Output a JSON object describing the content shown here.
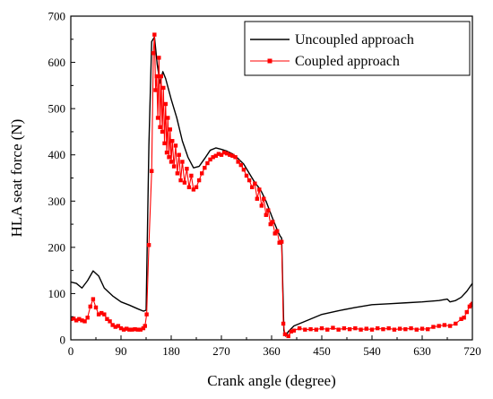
{
  "chart_data": {
    "type": "line",
    "title": "",
    "xlabel": "Crank angle (degree)",
    "ylabel": "HLA seat force (N)",
    "xlim": [
      0,
      720
    ],
    "ylim": [
      0,
      700
    ],
    "x_ticks": [
      0,
      90,
      180,
      270,
      360,
      450,
      540,
      630,
      720
    ],
    "y_ticks": [
      0,
      100,
      200,
      300,
      400,
      500,
      600,
      700
    ],
    "x_tick_labels": [
      "0",
      "90",
      "180",
      "270",
      "360",
      "450",
      "540",
      "630",
      "720"
    ],
    "y_tick_labels": [
      "0",
      "100",
      "200",
      "300",
      "400",
      "500",
      "600",
      "700"
    ],
    "grid": false,
    "legend": {
      "placement": "top-right"
    },
    "series": [
      {
        "name": "Uncoupled approach",
        "color": "#000000",
        "marker": "none",
        "points": [
          [
            0,
            125
          ],
          [
            10,
            122
          ],
          [
            20,
            112
          ],
          [
            30,
            128
          ],
          [
            40,
            149
          ],
          [
            50,
            138
          ],
          [
            60,
            112
          ],
          [
            75,
            95
          ],
          [
            90,
            82
          ],
          [
            105,
            75
          ],
          [
            120,
            67
          ],
          [
            130,
            62
          ],
          [
            135,
            64
          ],
          [
            140,
            420
          ],
          [
            145,
            645
          ],
          [
            150,
            655
          ],
          [
            155,
            595
          ],
          [
            160,
            555
          ],
          [
            165,
            580
          ],
          [
            170,
            565
          ],
          [
            180,
            520
          ],
          [
            190,
            480
          ],
          [
            200,
            430
          ],
          [
            210,
            395
          ],
          [
            220,
            372
          ],
          [
            230,
            375
          ],
          [
            240,
            392
          ],
          [
            250,
            410
          ],
          [
            260,
            415
          ],
          [
            270,
            412
          ],
          [
            280,
            408
          ],
          [
            290,
            402
          ],
          [
            300,
            392
          ],
          [
            310,
            380
          ],
          [
            320,
            360
          ],
          [
            330,
            340
          ],
          [
            340,
            325
          ],
          [
            350,
            300
          ],
          [
            360,
            268
          ],
          [
            370,
            238
          ],
          [
            375,
            225
          ],
          [
            378,
            220
          ],
          [
            380,
            120
          ],
          [
            382,
            20
          ],
          [
            385,
            8
          ],
          [
            390,
            18
          ],
          [
            400,
            30
          ],
          [
            420,
            40
          ],
          [
            450,
            55
          ],
          [
            480,
            63
          ],
          [
            510,
            70
          ],
          [
            540,
            76
          ],
          [
            570,
            78
          ],
          [
            600,
            80
          ],
          [
            630,
            82
          ],
          [
            660,
            85
          ],
          [
            675,
            88
          ],
          [
            680,
            82
          ],
          [
            690,
            85
          ],
          [
            700,
            92
          ],
          [
            710,
            105
          ],
          [
            720,
            122
          ]
        ]
      },
      {
        "name": "Coupled approach",
        "color": "#ff0000",
        "marker": "square",
        "points": [
          [
            0,
            45
          ],
          [
            5,
            46
          ],
          [
            10,
            42
          ],
          [
            15,
            45
          ],
          [
            20,
            42
          ],
          [
            25,
            40
          ],
          [
            30,
            48
          ],
          [
            35,
            72
          ],
          [
            40,
            88
          ],
          [
            45,
            70
          ],
          [
            50,
            55
          ],
          [
            55,
            58
          ],
          [
            60,
            55
          ],
          [
            65,
            45
          ],
          [
            70,
            40
          ],
          [
            75,
            32
          ],
          [
            80,
            28
          ],
          [
            85,
            30
          ],
          [
            90,
            25
          ],
          [
            95,
            22
          ],
          [
            100,
            24
          ],
          [
            105,
            22
          ],
          [
            110,
            22
          ],
          [
            115,
            23
          ],
          [
            120,
            22
          ],
          [
            125,
            22
          ],
          [
            130,
            25
          ],
          [
            133,
            30
          ],
          [
            136,
            55
          ],
          [
            140,
            205
          ],
          [
            145,
            365
          ],
          [
            148,
            620
          ],
          [
            150,
            660
          ],
          [
            152,
            540
          ],
          [
            154,
            570
          ],
          [
            156,
            480
          ],
          [
            158,
            610
          ],
          [
            160,
            460
          ],
          [
            162,
            570
          ],
          [
            164,
            450
          ],
          [
            166,
            545
          ],
          [
            168,
            425
          ],
          [
            170,
            510
          ],
          [
            172,
            405
          ],
          [
            174,
            480
          ],
          [
            176,
            395
          ],
          [
            178,
            455
          ],
          [
            180,
            385
          ],
          [
            182,
            430
          ],
          [
            185,
            375
          ],
          [
            188,
            420
          ],
          [
            191,
            360
          ],
          [
            194,
            400
          ],
          [
            197,
            345
          ],
          [
            200,
            385
          ],
          [
            204,
            340
          ],
          [
            208,
            370
          ],
          [
            212,
            330
          ],
          [
            216,
            355
          ],
          [
            220,
            325
          ],
          [
            225,
            330
          ],
          [
            230,
            345
          ],
          [
            235,
            360
          ],
          [
            240,
            372
          ],
          [
            245,
            382
          ],
          [
            250,
            390
          ],
          [
            255,
            395
          ],
          [
            260,
            398
          ],
          [
            265,
            402
          ],
          [
            270,
            400
          ],
          [
            275,
            405
          ],
          [
            280,
            403
          ],
          [
            285,
            400
          ],
          [
            290,
            398
          ],
          [
            295,
            395
          ],
          [
            300,
            385
          ],
          [
            305,
            378
          ],
          [
            310,
            368
          ],
          [
            315,
            355
          ],
          [
            320,
            345
          ],
          [
            325,
            330
          ],
          [
            330,
            338
          ],
          [
            334,
            305
          ],
          [
            338,
            325
          ],
          [
            342,
            290
          ],
          [
            346,
            305
          ],
          [
            350,
            270
          ],
          [
            354,
            280
          ],
          [
            358,
            250
          ],
          [
            362,
            255
          ],
          [
            366,
            230
          ],
          [
            370,
            235
          ],
          [
            374,
            210
          ],
          [
            378,
            212
          ],
          [
            381,
            35
          ],
          [
            384,
            12
          ],
          [
            390,
            8
          ],
          [
            395,
            18
          ],
          [
            400,
            20
          ],
          [
            410,
            25
          ],
          [
            420,
            22
          ],
          [
            430,
            23
          ],
          [
            440,
            22
          ],
          [
            450,
            25
          ],
          [
            460,
            22
          ],
          [
            470,
            26
          ],
          [
            480,
            22
          ],
          [
            490,
            25
          ],
          [
            500,
            23
          ],
          [
            510,
            25
          ],
          [
            520,
            22
          ],
          [
            530,
            24
          ],
          [
            540,
            22
          ],
          [
            550,
            25
          ],
          [
            560,
            23
          ],
          [
            570,
            25
          ],
          [
            580,
            22
          ],
          [
            590,
            24
          ],
          [
            600,
            23
          ],
          [
            610,
            25
          ],
          [
            620,
            22
          ],
          [
            630,
            24
          ],
          [
            640,
            23
          ],
          [
            650,
            28
          ],
          [
            660,
            30
          ],
          [
            670,
            32
          ],
          [
            680,
            30
          ],
          [
            690,
            35
          ],
          [
            700,
            45
          ],
          [
            705,
            48
          ],
          [
            710,
            60
          ],
          [
            715,
            72
          ],
          [
            718,
            75
          ],
          [
            720,
            78
          ]
        ]
      }
    ]
  }
}
